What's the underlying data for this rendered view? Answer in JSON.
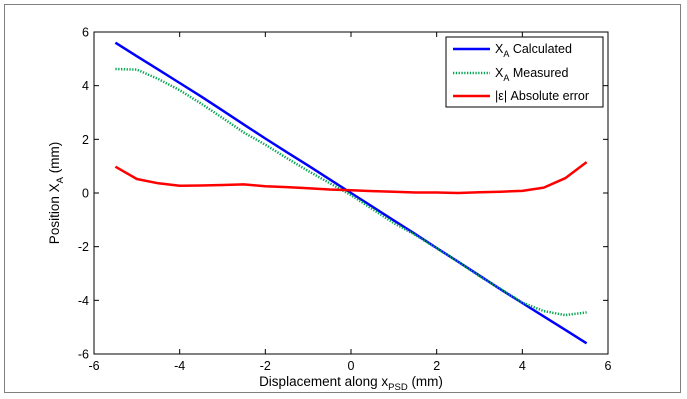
{
  "chart_data": {
    "type": "line",
    "title": "",
    "xlabel": {
      "main": "Displacement along x",
      "sub": "PSD",
      "suffix": " (mm)"
    },
    "ylabel": {
      "main": "Position X",
      "sub": "A",
      "suffix": " (mm)"
    },
    "xlim": [
      -6,
      6
    ],
    "ylim": [
      -6,
      6
    ],
    "xticks": [
      -6,
      -4,
      -2,
      0,
      2,
      4,
      6
    ],
    "yticks": [
      -6,
      -4,
      -2,
      0,
      2,
      4,
      6
    ],
    "xtick_labels": [
      "-6",
      "-4",
      "-2",
      "0",
      "2",
      "4",
      "6"
    ],
    "ytick_labels": [
      "-6",
      "-4",
      "-2",
      "0",
      "2",
      "4",
      "6"
    ],
    "grid": false,
    "legend_position": "top-right",
    "series": [
      {
        "name": "X_A Calculated",
        "legend": {
          "main": "X",
          "sub": "A",
          "suffix": " Calculated"
        },
        "color": "#0000ff",
        "style": "solid",
        "x": [
          -5.5,
          -5.0,
          -4.5,
          -4.0,
          -3.5,
          -3.0,
          -2.5,
          -2.0,
          -1.5,
          -1.0,
          -0.5,
          0.0,
          0.5,
          1.0,
          1.5,
          2.0,
          2.5,
          3.0,
          3.5,
          4.0,
          4.5,
          5.0,
          5.5
        ],
        "y": [
          5.6,
          5.1,
          4.6,
          4.1,
          3.6,
          3.08,
          2.55,
          2.03,
          1.52,
          1.02,
          0.51,
          0.0,
          -0.51,
          -1.02,
          -1.53,
          -2.05,
          -2.56,
          -3.08,
          -3.6,
          -4.1,
          -4.6,
          -5.1,
          -5.6
        ]
      },
      {
        "name": "X_A Measured",
        "legend": {
          "main": "X",
          "sub": "A",
          "suffix": " Measured"
        },
        "color": "#00a650",
        "style": "dotted",
        "x": [
          -5.5,
          -5.0,
          -4.5,
          -4.0,
          -3.5,
          -3.0,
          -2.5,
          -2.0,
          -1.5,
          -1.0,
          -0.5,
          0.0,
          0.5,
          1.0,
          1.5,
          2.0,
          2.5,
          3.0,
          3.5,
          4.0,
          4.5,
          5.0,
          5.5
        ],
        "y": [
          4.62,
          4.6,
          4.25,
          3.83,
          3.33,
          2.8,
          2.25,
          1.8,
          1.3,
          0.82,
          0.37,
          -0.08,
          -0.6,
          -1.12,
          -1.56,
          -2.06,
          -2.56,
          -3.1,
          -3.58,
          -4.08,
          -4.4,
          -4.55,
          -4.45
        ]
      },
      {
        "name": "|ε| Absolute error",
        "legend": {
          "main": "|ε| Absolute error",
          "sub": "",
          "suffix": ""
        },
        "color": "#ff0000",
        "style": "solid",
        "x": [
          -5.5,
          -5.0,
          -4.5,
          -4.0,
          -3.5,
          -3.0,
          -2.5,
          -2.0,
          -1.5,
          -1.0,
          -0.5,
          0.0,
          0.5,
          1.0,
          1.5,
          2.0,
          2.5,
          3.0,
          3.5,
          4.0,
          4.5,
          5.0,
          5.5
        ],
        "y": [
          0.98,
          0.52,
          0.36,
          0.27,
          0.28,
          0.3,
          0.32,
          0.25,
          0.22,
          0.18,
          0.13,
          0.1,
          0.07,
          0.05,
          0.02,
          0.02,
          0.0,
          0.03,
          0.05,
          0.08,
          0.2,
          0.55,
          1.15
        ]
      }
    ]
  }
}
